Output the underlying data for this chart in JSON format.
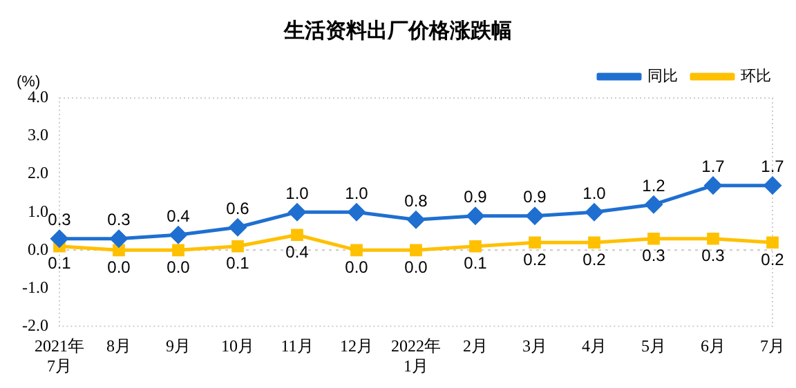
{
  "chart_data": {
    "type": "line",
    "title": "生活资料出厂价格涨跌幅",
    "ylabel": "(%)",
    "categories": [
      "2021年\n7月",
      "8月",
      "9月",
      "10月",
      "11月",
      "12月",
      "2022年\n1月",
      "2月",
      "3月",
      "4月",
      "5月",
      "6月",
      "7月"
    ],
    "series": [
      {
        "name": "同比",
        "color": "#1f6fd1",
        "marker": "diamond",
        "values": [
          0.3,
          0.3,
          0.4,
          0.6,
          1.0,
          1.0,
          0.8,
          0.9,
          0.9,
          1.0,
          1.2,
          1.7,
          1.7
        ],
        "value_labels": [
          "0.3",
          "0.3",
          "0.4",
          "0.6",
          "1.0",
          "1.0",
          "0.8",
          "0.9",
          "0.9",
          "1.0",
          "1.2",
          "1.7",
          "1.7"
        ]
      },
      {
        "name": "环比",
        "color": "#ffc000",
        "marker": "square",
        "values": [
          0.1,
          0.0,
          0.0,
          0.1,
          0.4,
          0.0,
          0.0,
          0.1,
          0.2,
          0.2,
          0.3,
          0.3,
          0.2
        ],
        "value_labels": [
          "0.1",
          "0.0",
          "0.0",
          "0.1",
          "0.4",
          "0.0",
          "0.0",
          "0.1",
          "0.2",
          "0.2",
          "0.3",
          "0.3",
          "0.2"
        ]
      }
    ],
    "ylim": [
      -2.0,
      4.0
    ],
    "yticks": [
      {
        "value": -2,
        "label": "-2.0"
      },
      {
        "value": -1,
        "label": "-1.0"
      },
      {
        "value": 0,
        "label": "0.0"
      },
      {
        "value": 1,
        "label": "1.0"
      },
      {
        "value": 2,
        "label": "2.0"
      },
      {
        "value": 3,
        "label": "3.0"
      },
      {
        "value": 4,
        "label": "4.0"
      }
    ],
    "ref_lines": [
      {
        "axis": "y",
        "value": 0,
        "color": "#c8c8c8",
        "line_style": "dotted"
      }
    ],
    "grid": false,
    "legend": "top right"
  }
}
